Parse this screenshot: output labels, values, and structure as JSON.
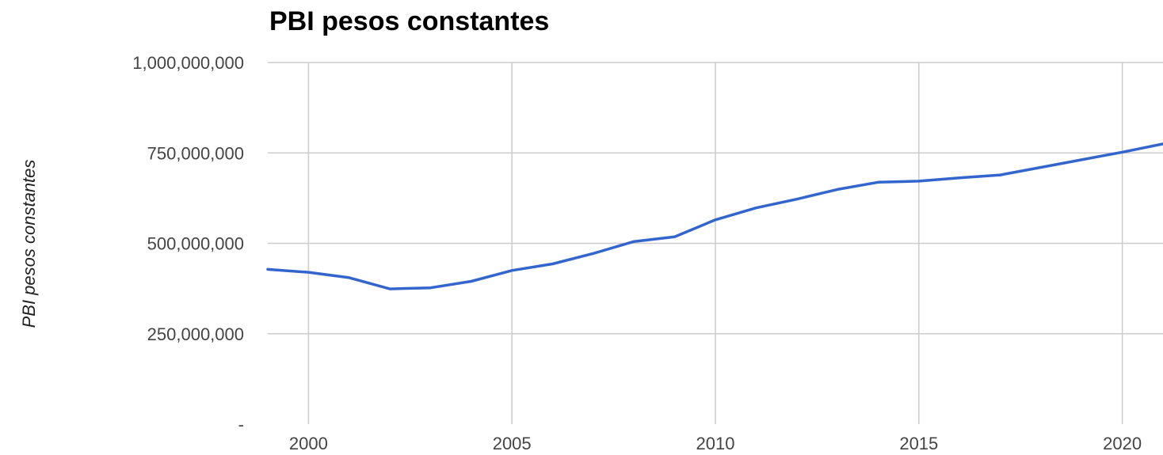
{
  "chart_data": {
    "type": "line",
    "title": "PBI pesos constantes",
    "ylabel": "PBI pesos constantes",
    "xlim": [
      1999,
      2021
    ],
    "ylim": [
      0,
      1000000000
    ],
    "x_ticks": [
      2000,
      2005,
      2010,
      2015,
      2020
    ],
    "x_tick_labels": [
      "2000",
      "2005",
      "2010",
      "2015",
      "2020"
    ],
    "y_ticks": [
      0,
      250000000,
      500000000,
      750000000,
      1000000000
    ],
    "y_tick_labels": [
      "-",
      "250,000,000",
      "500,000,000",
      "750,000,000",
      "1,000,000,000"
    ],
    "grid": true,
    "series": [
      {
        "color": "#3366cc",
        "x": [
          1999,
          2000,
          2001,
          2002,
          2003,
          2004,
          2005,
          2006,
          2007,
          2008,
          2009,
          2010,
          2011,
          2012,
          2013,
          2014,
          2015,
          2016,
          2017,
          2018,
          2019,
          2020,
          2021
        ],
        "values": [
          428000000,
          420000000,
          405000000,
          374000000,
          377000000,
          395000000,
          425000000,
          443000000,
          472000000,
          505000000,
          518000000,
          565000000,
          598000000,
          622000000,
          649000000,
          669000000,
          672000000,
          681000000,
          689000000,
          710000000,
          731000000,
          752000000,
          775000000
        ]
      }
    ]
  }
}
